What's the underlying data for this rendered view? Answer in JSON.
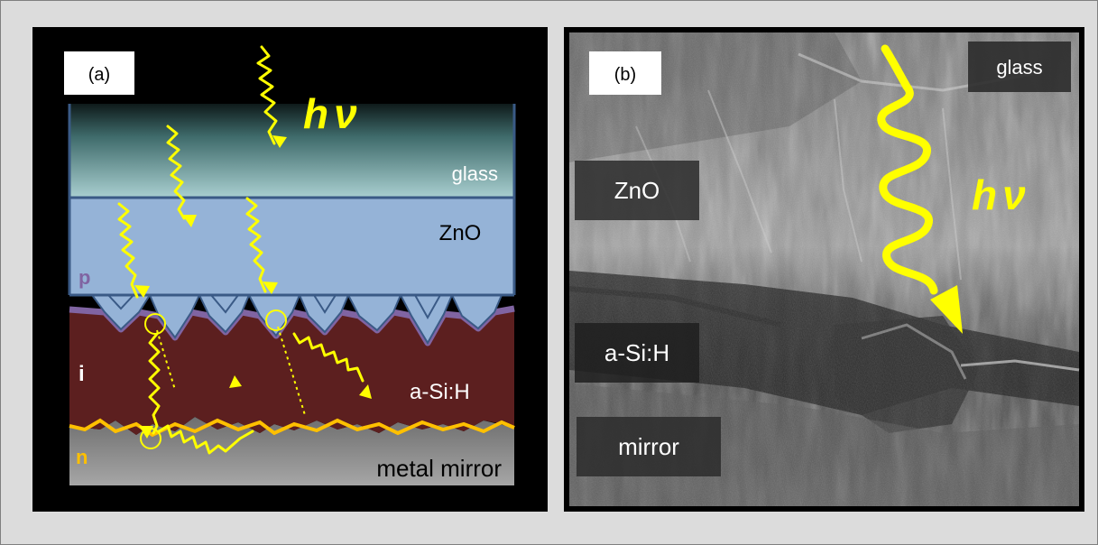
{
  "panel_a": {
    "tag": "(a)",
    "photon": {
      "h": "h",
      "nu": "ν"
    },
    "layers": {
      "glass": "glass",
      "zno": "ZnO",
      "p": "p",
      "i": "i",
      "asih": "a-Si:H",
      "n": "n",
      "mirror": "metal mirror"
    }
  },
  "panel_b": {
    "tag": "(b)",
    "photon": {
      "h": "h",
      "nu": "ν"
    },
    "labels": {
      "glass": "glass",
      "zno": "ZnO",
      "asih": "a-Si:H",
      "mirror": "mirror"
    }
  },
  "colors": {
    "photon": "#ffff00",
    "glass_top": "#1f3a3a",
    "glass_bottom": "#a9cfd0",
    "zno": "#95b3d7",
    "p_layer": "#8064a2",
    "asih": "#5c1f1f",
    "n_layer": "#ffc000",
    "mirror": "#a6a6a6",
    "layer_outline": "#3a5a86"
  }
}
